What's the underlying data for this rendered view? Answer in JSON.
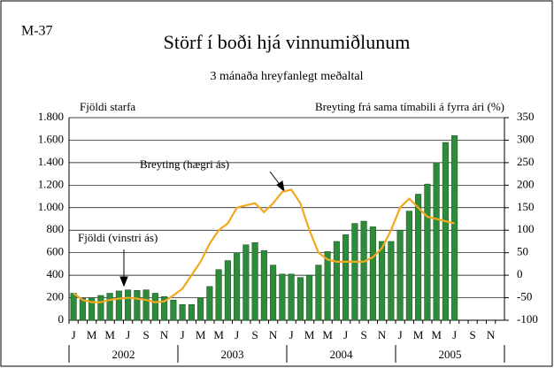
{
  "chart_data": {
    "type": "bar_line",
    "label": "M-37",
    "title": "Störf í boði hjá vinnumiðlunum",
    "subtitle": "3 mánaða hreyfanlegt meðaltal",
    "y_label": "Fjöldi starfa",
    "y2_label": "Breyting frá sama tímabili á fyrra ári (%)",
    "annotations": [
      "Breyting (hægri ás)",
      "Fjöldi (vinstri ás)"
    ],
    "categories": [
      "J",
      null,
      "M",
      null,
      "M",
      null,
      "J",
      null,
      "S",
      null,
      "N",
      null,
      "J",
      null,
      "M",
      null,
      "M",
      null,
      "J",
      null,
      "S",
      null,
      "N",
      null,
      "J",
      null,
      "M",
      null,
      "M",
      null,
      "J",
      null,
      "S",
      null,
      "N",
      null,
      "J",
      null,
      "M",
      null,
      "M",
      null,
      "J",
      null,
      "S",
      null,
      "N",
      null
    ],
    "years": [
      "2002",
      "2003",
      "2004",
      "2005"
    ],
    "series": [
      {
        "name": "Fjöldi (vinstri ás)",
        "color": "#2e8b3a",
        "values": [
          240,
          195,
          200,
          220,
          240,
          260,
          270,
          265,
          270,
          240,
          210,
          180,
          140,
          140,
          200,
          300,
          450,
          530,
          600,
          670,
          690,
          620,
          490,
          410,
          410,
          380,
          400,
          490,
          610,
          700,
          760,
          860,
          880,
          830,
          700,
          700,
          800,
          970,
          1120,
          1210,
          1400,
          1580,
          1640,
          null,
          null,
          null,
          null,
          null
        ]
      },
      {
        "name": "Breyting (hægri ás)",
        "color": "#f4a81d",
        "axis": "y2",
        "values": [
          -40,
          -55,
          -60,
          -60,
          -55,
          -52,
          -50,
          -52,
          -55,
          -60,
          -58,
          -45,
          -30,
          0,
          30,
          70,
          100,
          115,
          150,
          155,
          160,
          140,
          160,
          185,
          190,
          160,
          100,
          50,
          35,
          30,
          30,
          30,
          30,
          40,
          60,
          100,
          150,
          170,
          150,
          130,
          125,
          120,
          115,
          null,
          null,
          null,
          null,
          null
        ]
      }
    ],
    "ylim": [
      0,
      1800
    ],
    "yticks": [
      0,
      200,
      400,
      600,
      800,
      {
        "value": 1000,
        "label": "1.000"
      },
      {
        "value": 1200,
        "label": "1.200"
      },
      {
        "value": 1400,
        "label": "1.400"
      },
      {
        "value": 1600,
        "label": "1.600"
      },
      {
        "value": 1800,
        "label": "1.800"
      }
    ],
    "y2lim": [
      -100,
      350
    ],
    "y2ticks": [
      -100,
      -50,
      0,
      50,
      100,
      150,
      200,
      250,
      300,
      350
    ],
    "grid": true
  }
}
